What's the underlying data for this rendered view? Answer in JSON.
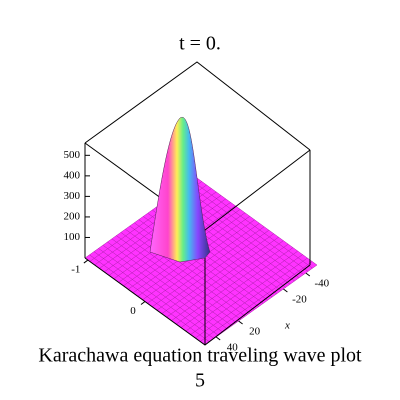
{
  "chart_data": {
    "type": "surface3d",
    "title": "t = 0.",
    "caption": [
      "Karachawa equation  traveling wave plot",
      "5"
    ],
    "xlabel": "x",
    "xlim": [
      50,
      -50
    ],
    "xticks": [
      -40,
      -20,
      20,
      40
    ],
    "ylim": [
      -1.05,
      1.05
    ],
    "yticks": [
      -1,
      0
    ],
    "zlim": [
      0,
      560
    ],
    "zticks": [
      100,
      200,
      300,
      400,
      500
    ],
    "color": "#ff33ff"
  }
}
